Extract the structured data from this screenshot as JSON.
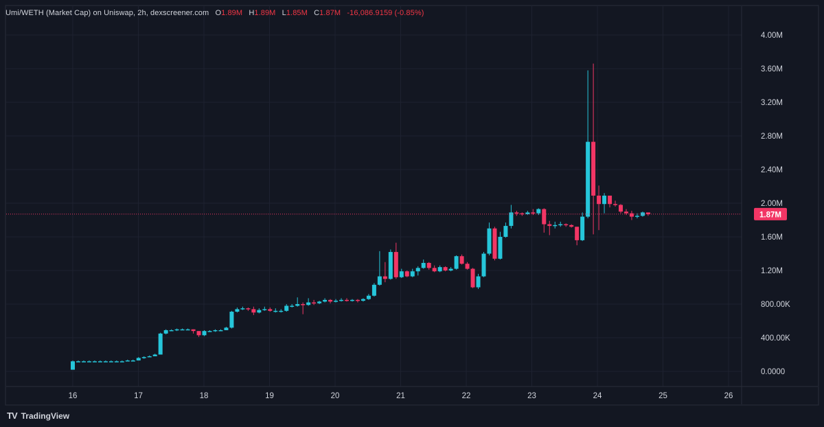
{
  "legend": {
    "symbol": "Umi/WETH (Market Cap) on Uniswap, 2h, dexscreener.com",
    "o_label": "O",
    "o_value": "1.89M",
    "h_label": "H",
    "h_value": "1.89M",
    "l_label": "L",
    "l_value": "1.85M",
    "c_label": "C",
    "c_value": "1.87M",
    "change": "-16,086.9159 (-0.85%)"
  },
  "brand": {
    "name": "TradingView",
    "logo": "TV"
  },
  "colors": {
    "up": "#26c6da",
    "down": "#f23665",
    "background": "#131722",
    "grid": "#1e2230",
    "text": "#d1d4dc",
    "price_line": "#f23665"
  },
  "chart_data": {
    "type": "candlestick",
    "yticks": [
      "0.0000",
      "400.00K",
      "800.00K",
      "1.20M",
      "1.60M",
      "2.00M",
      "2.40M",
      "2.80M",
      "3.20M",
      "3.60M",
      "4.00M"
    ],
    "yvalues": [
      0,
      400000,
      800000,
      1200000,
      1600000,
      2000000,
      2400000,
      2800000,
      3200000,
      3600000,
      4000000
    ],
    "xticks": [
      "16",
      "17",
      "18",
      "19",
      "20",
      "21",
      "22",
      "23",
      "24",
      "25",
      "26"
    ],
    "last_price_label": "1.87M",
    "last_price": 1870000,
    "candles": [
      [
        0.02,
        0.12,
        0.13,
        0.02
      ],
      [
        0.12,
        0.12,
        0.13,
        0.11
      ],
      [
        0.12,
        0.12,
        0.13,
        0.12
      ],
      [
        0.12,
        0.12,
        0.13,
        0.12
      ],
      [
        0.12,
        0.12,
        0.13,
        0.12
      ],
      [
        0.12,
        0.12,
        0.13,
        0.12
      ],
      [
        0.12,
        0.12,
        0.13,
        0.12
      ],
      [
        0.12,
        0.12,
        0.13,
        0.12
      ],
      [
        0.12,
        0.12,
        0.13,
        0.12
      ],
      [
        0.12,
        0.12,
        0.13,
        0.12
      ],
      [
        0.12,
        0.13,
        0.14,
        0.12
      ],
      [
        0.13,
        0.13,
        0.14,
        0.12
      ],
      [
        0.13,
        0.16,
        0.17,
        0.13
      ],
      [
        0.16,
        0.17,
        0.18,
        0.15
      ],
      [
        0.17,
        0.18,
        0.19,
        0.17
      ],
      [
        0.18,
        0.2,
        0.21,
        0.18
      ],
      [
        0.2,
        0.45,
        0.46,
        0.2
      ],
      [
        0.45,
        0.49,
        0.5,
        0.44
      ],
      [
        0.49,
        0.49,
        0.5,
        0.48
      ],
      [
        0.49,
        0.5,
        0.51,
        0.48
      ],
      [
        0.5,
        0.5,
        0.51,
        0.49
      ],
      [
        0.5,
        0.5,
        0.51,
        0.49
      ],
      [
        0.5,
        0.48,
        0.5,
        0.45
      ],
      [
        0.48,
        0.43,
        0.48,
        0.41
      ],
      [
        0.43,
        0.48,
        0.49,
        0.42
      ],
      [
        0.48,
        0.48,
        0.49,
        0.47
      ],
      [
        0.48,
        0.49,
        0.5,
        0.47
      ],
      [
        0.49,
        0.49,
        0.5,
        0.48
      ],
      [
        0.49,
        0.52,
        0.53,
        0.49
      ],
      [
        0.52,
        0.71,
        0.72,
        0.51
      ],
      [
        0.71,
        0.74,
        0.76,
        0.7
      ],
      [
        0.74,
        0.75,
        0.77,
        0.73
      ],
      [
        0.75,
        0.74,
        0.76,
        0.72
      ],
      [
        0.74,
        0.7,
        0.77,
        0.67
      ],
      [
        0.7,
        0.73,
        0.75,
        0.69
      ],
      [
        0.73,
        0.74,
        0.77,
        0.72
      ],
      [
        0.74,
        0.72,
        0.76,
        0.71
      ],
      [
        0.72,
        0.72,
        0.75,
        0.7
      ],
      [
        0.72,
        0.72,
        0.74,
        0.7
      ],
      [
        0.72,
        0.78,
        0.8,
        0.71
      ],
      [
        0.78,
        0.78,
        0.8,
        0.76
      ],
      [
        0.78,
        0.8,
        0.88,
        0.77
      ],
      [
        0.8,
        0.79,
        0.82,
        0.68
      ],
      [
        0.79,
        0.82,
        0.87,
        0.78
      ],
      [
        0.82,
        0.81,
        0.85,
        0.79
      ],
      [
        0.81,
        0.83,
        0.84,
        0.8
      ],
      [
        0.83,
        0.85,
        0.87,
        0.82
      ],
      [
        0.85,
        0.83,
        0.86,
        0.81
      ],
      [
        0.83,
        0.84,
        0.86,
        0.82
      ],
      [
        0.84,
        0.85,
        0.87,
        0.83
      ],
      [
        0.85,
        0.84,
        0.87,
        0.83
      ],
      [
        0.84,
        0.85,
        0.86,
        0.83
      ],
      [
        0.85,
        0.84,
        0.86,
        0.82
      ],
      [
        0.84,
        0.86,
        0.87,
        0.83
      ],
      [
        0.86,
        0.9,
        0.92,
        0.85
      ],
      [
        0.9,
        1.03,
        1.05,
        0.89
      ],
      [
        1.03,
        1.13,
        1.43,
        1.02
      ],
      [
        1.13,
        1.1,
        1.3,
        1.06
      ],
      [
        1.1,
        1.42,
        1.45,
        1.09
      ],
      [
        1.42,
        1.12,
        1.53,
        1.1
      ],
      [
        1.12,
        1.19,
        1.22,
        1.11
      ],
      [
        1.19,
        1.13,
        1.2,
        1.12
      ],
      [
        1.13,
        1.19,
        1.22,
        1.12
      ],
      [
        1.19,
        1.23,
        1.25,
        1.14
      ],
      [
        1.23,
        1.29,
        1.33,
        1.22
      ],
      [
        1.29,
        1.23,
        1.3,
        1.21
      ],
      [
        1.23,
        1.19,
        1.26,
        1.18
      ],
      [
        1.19,
        1.24,
        1.26,
        1.18
      ],
      [
        1.24,
        1.2,
        1.25,
        1.19
      ],
      [
        1.2,
        1.22,
        1.24,
        1.19
      ],
      [
        1.22,
        1.37,
        1.38,
        1.21
      ],
      [
        1.37,
        1.28,
        1.39,
        1.27
      ],
      [
        1.28,
        1.22,
        1.3,
        1.21
      ],
      [
        1.22,
        1.0,
        1.23,
        0.99
      ],
      [
        1.0,
        1.13,
        1.16,
        0.98
      ],
      [
        1.13,
        1.4,
        1.42,
        1.12
      ],
      [
        1.4,
        1.7,
        1.77,
        1.38
      ],
      [
        1.7,
        1.34,
        1.72,
        1.32
      ],
      [
        1.34,
        1.6,
        1.66,
        1.33
      ],
      [
        1.6,
        1.73,
        1.77,
        1.59
      ],
      [
        1.73,
        1.89,
        1.98,
        1.7
      ],
      [
        1.89,
        1.88,
        1.91,
        1.85
      ],
      [
        1.88,
        1.87,
        1.89,
        1.85
      ],
      [
        1.87,
        1.89,
        1.91,
        1.86
      ],
      [
        1.89,
        1.88,
        1.93,
        1.86
      ],
      [
        1.88,
        1.93,
        1.94,
        1.86
      ],
      [
        1.93,
        1.75,
        1.94,
        1.65
      ],
      [
        1.75,
        1.73,
        1.79,
        1.62
      ],
      [
        1.73,
        1.74,
        1.78,
        1.7
      ],
      [
        1.74,
        1.75,
        1.78,
        1.72
      ],
      [
        1.75,
        1.74,
        1.76,
        1.72
      ],
      [
        1.74,
        1.72,
        1.75,
        1.71
      ],
      [
        1.72,
        1.56,
        1.72,
        1.5
      ],
      [
        1.56,
        1.84,
        1.89,
        1.55
      ],
      [
        1.84,
        2.73,
        3.58,
        1.82
      ],
      [
        2.73,
        2.09,
        3.66,
        1.63
      ],
      [
        2.09,
        1.99,
        2.21,
        1.68
      ],
      [
        1.99,
        2.09,
        2.12,
        1.88
      ],
      [
        2.09,
        1.99,
        2.06,
        1.95
      ],
      [
        1.99,
        1.98,
        2.03,
        1.96
      ],
      [
        1.98,
        1.9,
        1.99,
        1.88
      ],
      [
        1.9,
        1.88,
        1.93,
        1.86
      ],
      [
        1.88,
        1.84,
        1.91,
        1.8
      ],
      [
        1.84,
        1.85,
        1.88,
        1.82
      ],
      [
        1.85,
        1.89,
        1.9,
        1.84
      ],
      [
        1.89,
        1.87,
        1.89,
        1.85
      ]
    ]
  }
}
